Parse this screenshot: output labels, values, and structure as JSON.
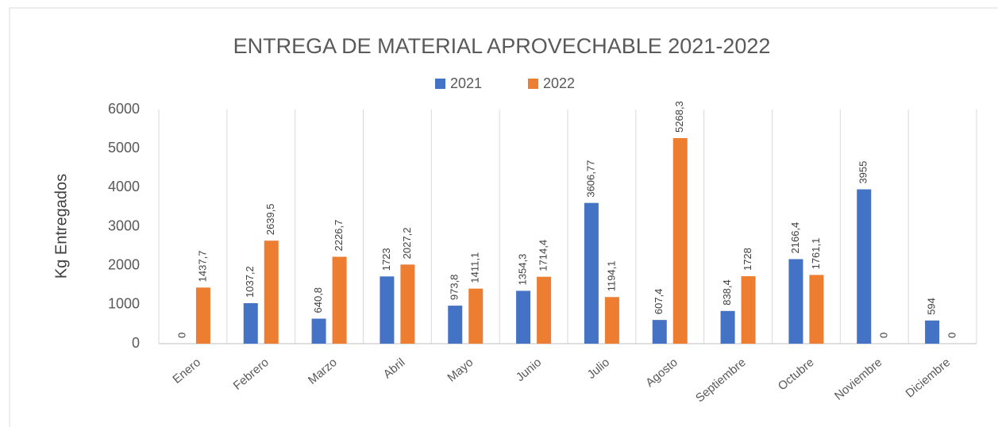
{
  "chart_data": {
    "type": "bar",
    "title": "ENTREGA DE MATERIAL APROVECHABLE 2021-2022",
    "y_label": "Kg Entregados",
    "categories": [
      "Enero",
      "Febrero",
      "Marzo",
      "Abril",
      "Mayo",
      "Junio",
      "Julio",
      "Agosto",
      "Septiembre",
      "Octubre",
      "Noviembre",
      "Diciembre"
    ],
    "series": [
      {
        "name": "2021",
        "color": "#4472c4",
        "values": [
          0,
          1037.2,
          640.8,
          1723,
          973.8,
          1354.3,
          3606.77,
          607.4,
          838.4,
          2166.4,
          3955,
          594
        ],
        "value_labels": [
          "0",
          "1037,2",
          "640,8",
          "1723",
          "973,8",
          "1354,3",
          "3606,77",
          "607,4",
          "838,4",
          "2166,4",
          "3955",
          "594"
        ]
      },
      {
        "name": "2022",
        "color": "#ed7d31",
        "values": [
          1437.7,
          2639.5,
          2226.7,
          2027.2,
          1411.1,
          1714.4,
          1194.1,
          5268.3,
          1728,
          1761.1,
          0,
          0
        ],
        "value_labels": [
          "1437,7",
          "2639,5",
          "2226,7",
          "2027,2",
          "1411,1",
          "1714,4",
          "1194,1",
          "5268,3",
          "1728",
          "1761,1",
          "0",
          "0"
        ]
      }
    ],
    "ylim": [
      0,
      6000
    ],
    "yticks": [
      0,
      1000,
      2000,
      3000,
      4000,
      5000,
      6000
    ]
  }
}
